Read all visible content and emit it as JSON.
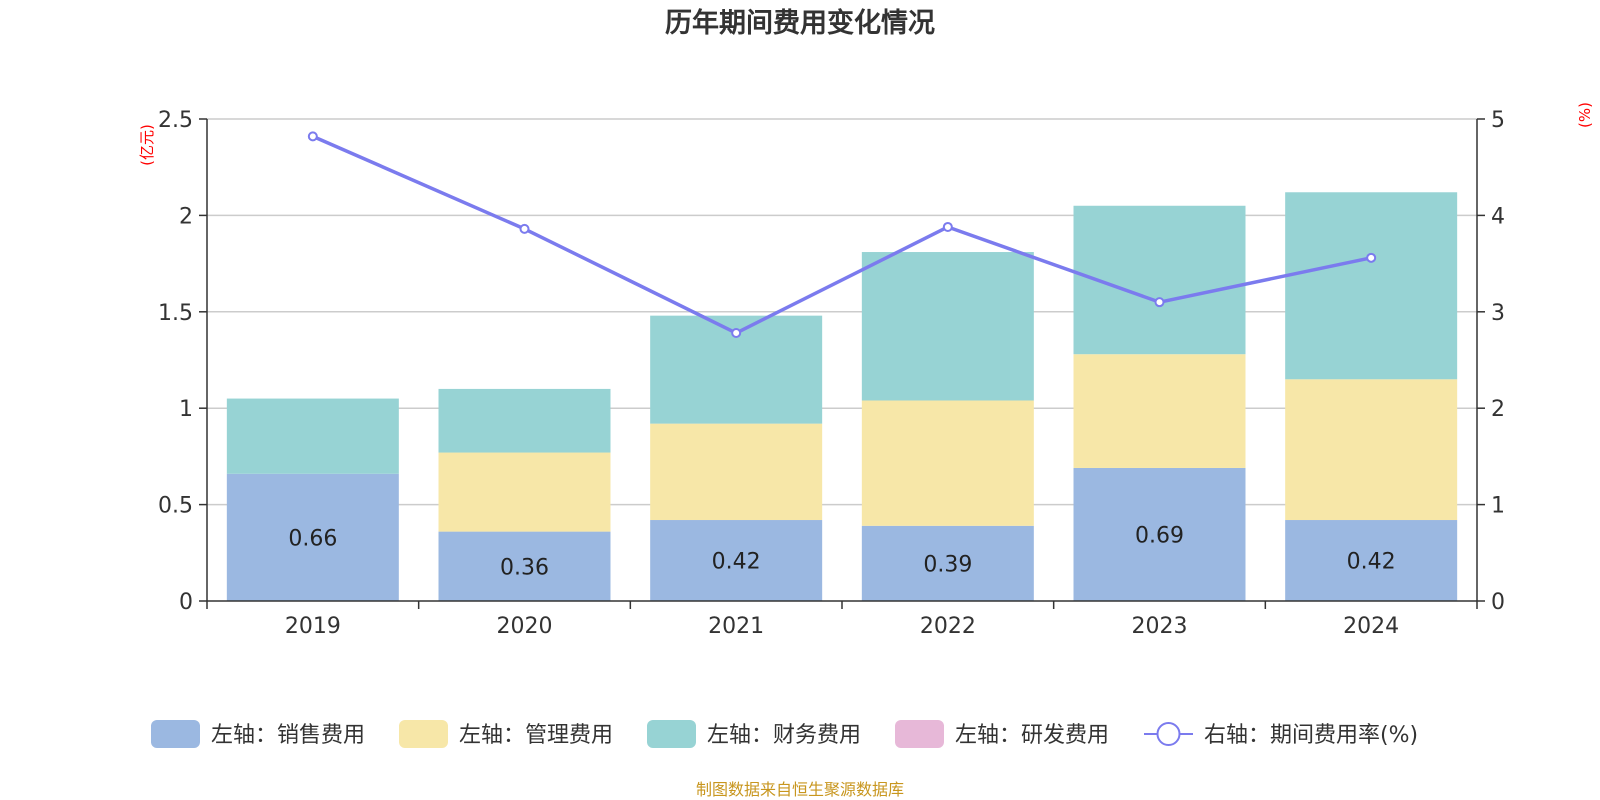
{
  "chart_data": {
    "type": "bar",
    "stacked": true,
    "title": "历年期间费用变化情况",
    "categories": [
      "2019",
      "2020",
      "2021",
      "2022",
      "2023",
      "2024"
    ],
    "left_axis": {
      "unit_label": "(亿元)",
      "ylim": [
        0,
        2.5
      ],
      "ticks": [
        "0",
        "0.5",
        "1",
        "1.5",
        "2",
        "2.5"
      ]
    },
    "right_axis": {
      "unit_label": "(%)",
      "ylim": [
        0,
        5
      ],
      "ticks": [
        "0",
        "1",
        "2",
        "3",
        "4",
        "5"
      ]
    },
    "series": [
      {
        "name": "左轴：销售费用",
        "type": "bar",
        "axis": "left",
        "color": "#9bb8e1",
        "values": [
          0.66,
          0.36,
          0.42,
          0.39,
          0.69,
          0.42
        ],
        "labels": [
          "0.66",
          "0.36",
          "0.42",
          "0.39",
          "0.69",
          "0.42"
        ]
      },
      {
        "name": "左轴：管理费用",
        "type": "bar",
        "axis": "left",
        "color": "#f7e7a8",
        "values": [
          0,
          0.41,
          0.5,
          0.65,
          0.59,
          0.73
        ]
      },
      {
        "name": "左轴：财务费用",
        "type": "bar",
        "axis": "left",
        "color": "#97d3d4",
        "values": [
          0.39,
          0.33,
          0.56,
          0.77,
          0.77,
          0.97
        ]
      },
      {
        "name": "左轴：研发费用",
        "type": "bar",
        "axis": "left",
        "color": "#e7b8d8",
        "values": [
          0,
          0,
          0,
          0,
          0,
          0
        ]
      },
      {
        "name": "右轴：期间费用率(%)",
        "type": "line",
        "axis": "right",
        "color": "#7b7bee",
        "values": [
          4.82,
          3.86,
          2.78,
          3.88,
          3.1,
          3.56
        ]
      }
    ],
    "grid": true,
    "legend_position": "bottom"
  },
  "source_note": "制图数据来自恒生聚源数据库"
}
